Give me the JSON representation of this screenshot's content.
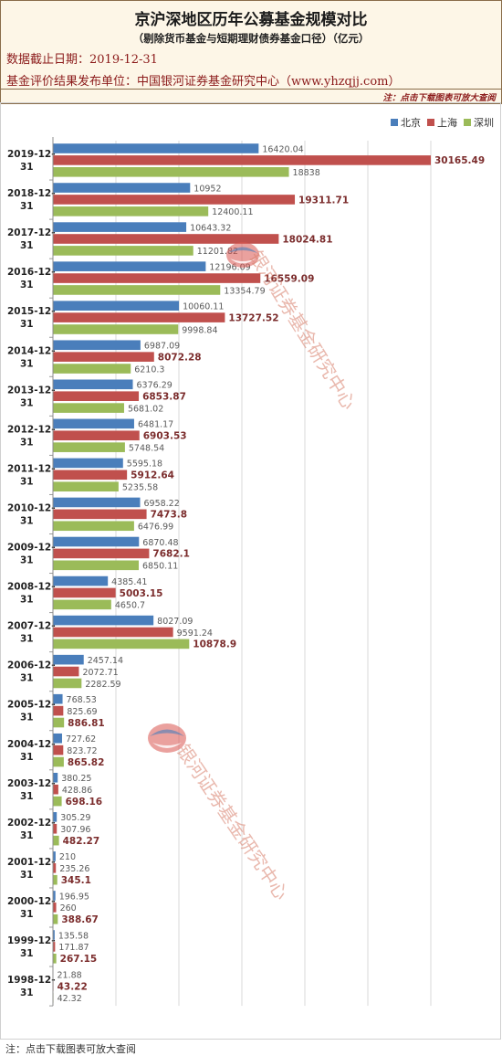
{
  "header": {
    "title": "京沪深地区历年公募基金规模对比",
    "subtitle": "（剔除货币基金与短期理财债券基金口径）（亿元）",
    "date_line": "数据截止日期：2019-12-31",
    "publisher_line": "基金评价结果发布单位：中国银河证券基金研究中心（www.yhzqjj.com）",
    "note": "注：点击下载图表可放大查阅"
  },
  "footer": {
    "note": "注：点击下载图表可放大查阅"
  },
  "watermark": {
    "text": "银河证券基金研究中心",
    "logo": "yinhe-logo"
  },
  "colors": {
    "beijing": "#4a7ebb",
    "shanghai": "#c0504d",
    "shenzhen": "#9bbb59",
    "label_bold": "#7b2c2c",
    "label_normal": "#595959"
  },
  "chart_data": {
    "type": "bar",
    "orientation": "horizontal",
    "title": "京沪深地区历年公募基金规模对比",
    "xlim": [
      0,
      30165.49
    ],
    "grid": true,
    "legend": "top-right",
    "categories": [
      {
        "l1": "2019-12-",
        "l2": "31"
      },
      {
        "l1": "2018-12-",
        "l2": "31"
      },
      {
        "l1": "2017-12-",
        "l2": "31"
      },
      {
        "l1": "2016-12-",
        "l2": "31"
      },
      {
        "l1": "2015-12-",
        "l2": "31"
      },
      {
        "l1": "2014-12-",
        "l2": "31"
      },
      {
        "l1": "2013-12-",
        "l2": "31"
      },
      {
        "l1": "2012-12-",
        "l2": "31"
      },
      {
        "l1": "2011-12-",
        "l2": "31"
      },
      {
        "l1": "2010-12-",
        "l2": "31"
      },
      {
        "l1": "2009-12-",
        "l2": "31"
      },
      {
        "l1": "2008-12-",
        "l2": "31"
      },
      {
        "l1": "2007-12-",
        "l2": "31"
      },
      {
        "l1": "2006-12-",
        "l2": "31"
      },
      {
        "l1": "2005-12-",
        "l2": "31"
      },
      {
        "l1": "2004-12-",
        "l2": "31"
      },
      {
        "l1": "2003-12-",
        "l2": "31"
      },
      {
        "l1": "2002-12-",
        "l2": "31"
      },
      {
        "l1": "2001-12-",
        "l2": "31"
      },
      {
        "l1": "2000-12-",
        "l2": "31"
      },
      {
        "l1": "1999-12-",
        "l2": "31"
      },
      {
        "l1": "1998-12-",
        "l2": "31"
      }
    ],
    "series": [
      {
        "name": "北京",
        "values": [
          16420.04,
          10952,
          10643.32,
          12196.09,
          10060.11,
          6987.09,
          6376.29,
          6481.17,
          5595.18,
          6958.22,
          6870.48,
          4385.41,
          8027.09,
          2457.14,
          768.53,
          727.62,
          380.25,
          305.29,
          210,
          196.95,
          135.58,
          21.88
        ],
        "labels": [
          "16420.04",
          "10952",
          "10643.32",
          "12196.09",
          "10060.11",
          "6987.09",
          "6376.29",
          "6481.17",
          "5595.18",
          "6958.22",
          "6870.48",
          "4385.41",
          "8027.09",
          "2457.14",
          "768.53",
          "727.62",
          "380.25",
          "305.29",
          "210",
          "196.95",
          "135.58",
          "21.88"
        ]
      },
      {
        "name": "上海",
        "values": [
          30165.49,
          19311.71,
          18024.81,
          16559.09,
          13727.52,
          8072.28,
          6853.87,
          6903.53,
          5912.64,
          7473.8,
          7682.1,
          5003.15,
          9591.24,
          2072.71,
          825.69,
          823.72,
          428.86,
          307.96,
          235.26,
          260,
          171.87,
          43.22
        ],
        "labels": [
          "30165.49",
          "19311.71",
          "18024.81",
          "16559.09",
          "13727.52",
          "8072.28",
          "6853.87",
          "6903.53",
          "5912.64",
          "7473.8",
          "7682.1",
          "5003.15",
          "9591.24",
          "2072.71",
          "825.69",
          "823.72",
          "428.86",
          "307.96",
          "235.26",
          "260",
          "171.87",
          "43.22"
        ]
      },
      {
        "name": "深圳",
        "values": [
          18838,
          12400.11,
          11201.82,
          13354.79,
          9998.84,
          6210.3,
          5681.02,
          5748.54,
          5235.58,
          6476.99,
          6850.11,
          4650.7,
          10878.9,
          2282.59,
          886.81,
          865.82,
          698.16,
          482.27,
          345.1,
          388.67,
          267.15,
          42.32
        ],
        "labels": [
          "18838",
          "12400.11",
          "11201.82",
          "13354.79",
          "9998.84",
          "6210.3",
          "5681.02",
          "5748.54",
          "5235.58",
          "6476.99",
          "6850.11",
          "4650.7",
          "10878.9",
          "2282.59",
          "886.81",
          "865.82",
          "698.16",
          "482.27",
          "345.1",
          "388.67",
          "267.15",
          "42.32"
        ]
      }
    ]
  }
}
